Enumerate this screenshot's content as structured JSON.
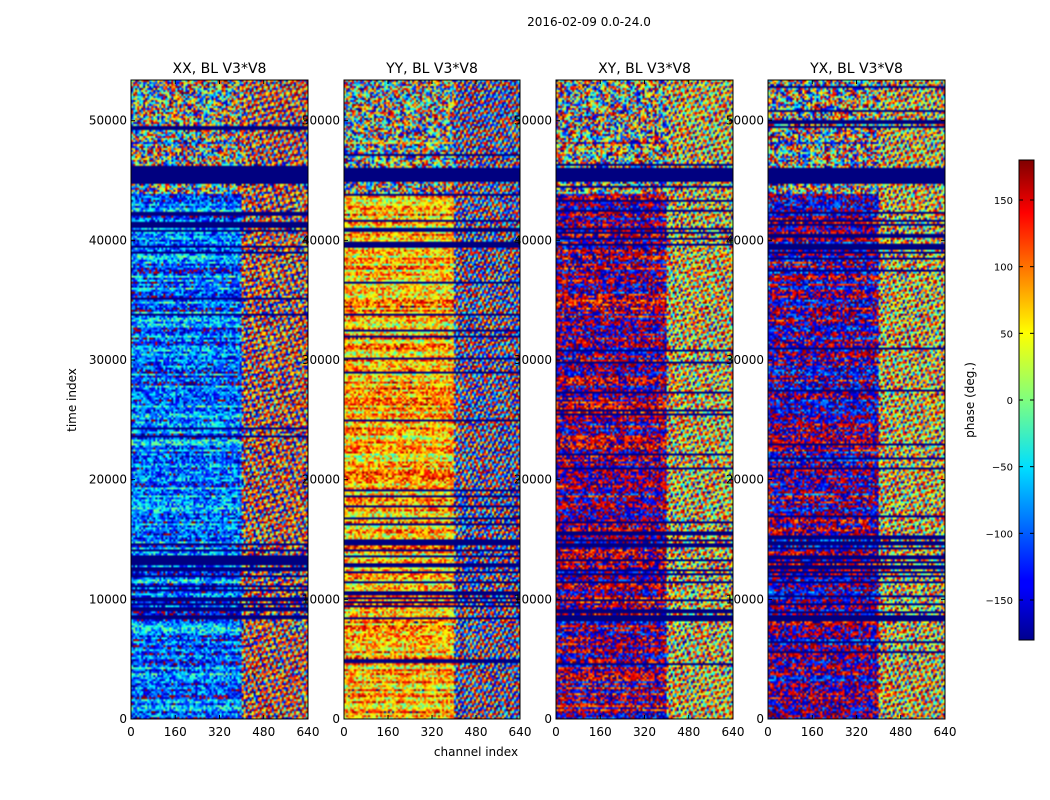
{
  "suptitle": "2016-02-09 0.0-24.0",
  "chart_data": {
    "type": "heatmap",
    "panels": [
      {
        "title": "XX, BL V3*V8",
        "base_phase": -95,
        "right_base_phase": -40,
        "warm": false
      },
      {
        "title": "YY, BL V3*V8",
        "base_phase": 70,
        "right_base_phase": 20,
        "warm": true
      },
      {
        "title": "XY, BL V3*V8",
        "base_phase": -180,
        "right_base_phase": -120,
        "warm": false
      },
      {
        "title": "YX, BL V3*V8",
        "base_phase": -170,
        "right_base_phase": -120,
        "warm": false
      }
    ],
    "xlabel": "channel index",
    "ylabel": "time index",
    "xlim": [
      0,
      640
    ],
    "ylim": [
      0,
      53400
    ],
    "xticks": [
      0,
      160,
      320,
      480,
      640
    ],
    "xtick_labels": [
      "0",
      "160",
      "320",
      "480",
      "640"
    ],
    "yticks": [
      0,
      10000,
      20000,
      30000,
      40000,
      50000
    ],
    "ytick_labels": [
      "0",
      "10000",
      "20000",
      "30000",
      "40000",
      "50000"
    ],
    "colorbar": {
      "label": "phase (deg.)",
      "range": [
        -180,
        180
      ],
      "ticks": [
        -150,
        -100,
        -50,
        0,
        50,
        100,
        150
      ],
      "tick_labels": [
        "−150",
        "−100",
        "−50",
        "0",
        "50",
        "100",
        "150"
      ]
    }
  }
}
